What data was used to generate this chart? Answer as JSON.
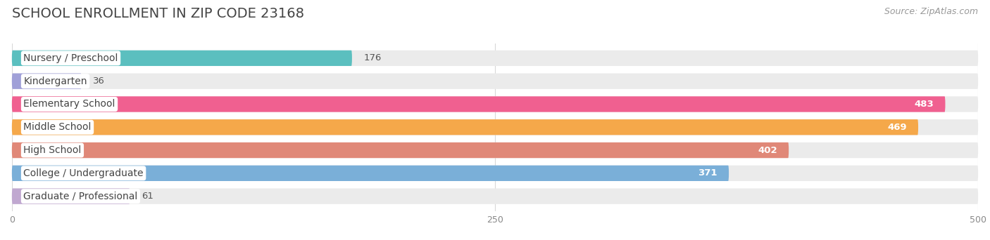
{
  "title": "SCHOOL ENROLLMENT IN ZIP CODE 23168",
  "source": "Source: ZipAtlas.com",
  "categories": [
    "Nursery / Preschool",
    "Kindergarten",
    "Elementary School",
    "Middle School",
    "High School",
    "College / Undergraduate",
    "Graduate / Professional"
  ],
  "values": [
    176,
    36,
    483,
    469,
    402,
    371,
    61
  ],
  "bar_colors": [
    "#5bbfbf",
    "#a0a0d8",
    "#f06090",
    "#f5a84a",
    "#e08878",
    "#7aafd8",
    "#c0a8d0"
  ],
  "value_white": [
    false,
    false,
    true,
    true,
    true,
    true,
    false
  ],
  "xlim": [
    0,
    500
  ],
  "xticks": [
    0,
    250,
    500
  ],
  "bg_color": "#ffffff",
  "bar_bg_color": "#ebebeb",
  "title_fontsize": 14,
  "source_fontsize": 9,
  "label_fontsize": 10,
  "value_fontsize": 9.5
}
